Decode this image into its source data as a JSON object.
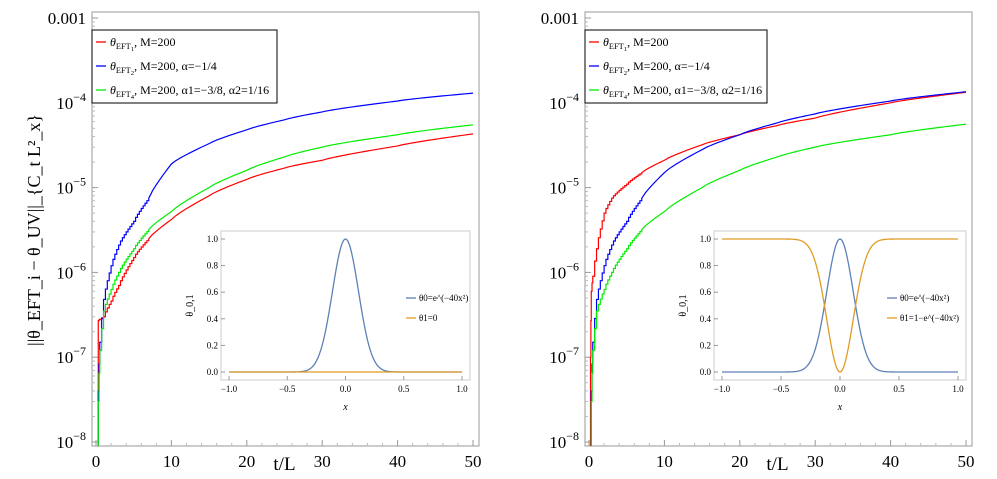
{
  "chart_data": [
    {
      "type": "line",
      "xlabel": "t/L",
      "ylabel": "||θ_EFT_i − θ_UV||_{C_t L²_x}",
      "xlim": [
        0,
        50
      ],
      "ylim": [
        1e-08,
        0.001
      ],
      "yscale": "log",
      "xticks": [
        "0",
        "10",
        "20",
        "30",
        "40",
        "50"
      ],
      "yticks": [
        "10^-8",
        "10^-7",
        "10^-6",
        "10^-5",
        "10^-4",
        "0.001"
      ],
      "legend_position": "top-left",
      "series": [
        {
          "name": "θ_EFT1, M=200",
          "color": "#ff0000",
          "x": [
            0.3,
            0.5,
            1,
            2,
            3,
            5,
            7,
            10,
            15,
            20,
            25,
            30,
            40,
            50
          ],
          "y": [
            2.7e-07,
            2.8e-07,
            3e-07,
            4.6e-07,
            7e-07,
            1.5e-06,
            2.5e-06,
            4.2e-06,
            8e-06,
            1.25e-05,
            1.7e-05,
            2.1e-05,
            3.1e-05,
            4.3e-05
          ]
        },
        {
          "name": "θ_EFT2, M=200, α=−1/4",
          "color": "#0000ff",
          "x": [
            0.3,
            0.5,
            1,
            2,
            3,
            5,
            7,
            10,
            15,
            20,
            25,
            30,
            40,
            50
          ],
          "y": [
            4e-08,
            1.5e-07,
            4.8e-07,
            1.2e-06,
            2.1e-06,
            4e-06,
            7.5e-06,
            1.9e-05,
            3.3e-05,
            4.8e-05,
            6.3e-05,
            7.8e-05,
            0.000105,
            0.00013
          ]
        },
        {
          "name": "θ_EFT4, M=200, α1=−3/8, α2=1/16",
          "color": "#00ee00",
          "x": [
            0.3,
            0.5,
            1,
            2,
            3,
            5,
            7,
            10,
            15,
            20,
            25,
            30,
            40,
            50
          ],
          "y": [
            3e-08,
            1.2e-07,
            3.5e-07,
            6.3e-07,
            1e-06,
            1.9e-06,
            3.2e-06,
            5.2e-06,
            1e-05,
            1.6e-05,
            2.3e-05,
            3e-05,
            4.2e-05,
            5.5e-05
          ]
        }
      ],
      "inset": {
        "xlabel": "x",
        "ylabel": "θ_0,1",
        "xlim": [
          -1,
          1
        ],
        "ylim": [
          0,
          1
        ],
        "xticks": [
          "-1.0",
          "-0.5",
          "0.0",
          "0.5",
          "1.0"
        ],
        "yticks": [
          "0.0",
          "0.2",
          "0.4",
          "0.6",
          "0.8",
          "1.0"
        ],
        "series": [
          {
            "name": "θ0=e^(−40x²)",
            "color": "#5e81b5",
            "formula": "exp(-40x^2)"
          },
          {
            "name": "θ1=0",
            "color": "#e19c24",
            "formula": "0"
          }
        ]
      }
    },
    {
      "type": "line",
      "xlabel": "t/L",
      "xlim": [
        0,
        50
      ],
      "ylim": [
        1e-08,
        0.001
      ],
      "yscale": "log",
      "xticks": [
        "0",
        "10",
        "20",
        "30",
        "40",
        "50"
      ],
      "yticks": [
        "10^-8",
        "10^-7",
        "10^-6",
        "10^-5",
        "10^-4",
        "0.001"
      ],
      "legend_position": "top-left",
      "series": [
        {
          "name": "θ_EFT1, M=200",
          "color": "#ff0000",
          "x": [
            0.2,
            0.3,
            0.5,
            1,
            2,
            3,
            5,
            7,
            10,
            15,
            20,
            25,
            30,
            40,
            50
          ],
          "y": [
            1e-07,
            6e-07,
            9e-07,
            1.9e-06,
            5e-06,
            7.5e-06,
            1.1e-05,
            1.5e-05,
            2.1e-05,
            3.2e-05,
            4.2e-05,
            5.4e-05,
            6.6e-05,
            0.0001,
            0.000133
          ]
        },
        {
          "name": "θ_EFT2, M=200, α=−1/4",
          "color": "#0000ff",
          "x": [
            0.3,
            0.5,
            1,
            2,
            3,
            5,
            7,
            10,
            15,
            20,
            25,
            30,
            40,
            50
          ],
          "y": [
            4e-08,
            1.5e-07,
            4.8e-07,
            1.2e-06,
            2.1e-06,
            4e-06,
            7.5e-06,
            1.5e-05,
            2.8e-05,
            4.2e-05,
            5.8e-05,
            7.4e-05,
            0.000105,
            0.000135
          ]
        },
        {
          "name": "θ_EFT4, M=200, α1=−3/8, α2=1/16",
          "color": "#00ee00",
          "x": [
            0.3,
            0.5,
            1,
            2,
            3,
            5,
            7,
            10,
            15,
            20,
            25,
            30,
            40,
            50
          ],
          "y": [
            3e-08,
            1.2e-07,
            3.5e-07,
            6.3e-07,
            1e-06,
            1.9e-06,
            3.2e-06,
            5.2e-06,
            1e-05,
            1.6e-05,
            2.3e-05,
            3e-05,
            4.2e-05,
            5.6e-05
          ]
        }
      ],
      "inset": {
        "xlabel": "x",
        "ylabel": "θ_0,1",
        "xlim": [
          -1,
          1
        ],
        "ylim": [
          0,
          1
        ],
        "xticks": [
          "-1.0",
          "-0.5",
          "0.0",
          "0.5",
          "1.0"
        ],
        "yticks": [
          "0.0",
          "0.2",
          "0.4",
          "0.6",
          "0.8",
          "1.0"
        ],
        "series": [
          {
            "name": "θ0=e^(−40x²)",
            "color": "#5e81b5",
            "formula": "exp(-40x^2)"
          },
          {
            "name": "θ1=1−e^(−40x²)",
            "color": "#e19c24",
            "formula": "1-exp(-40x^2)"
          }
        ]
      }
    }
  ]
}
